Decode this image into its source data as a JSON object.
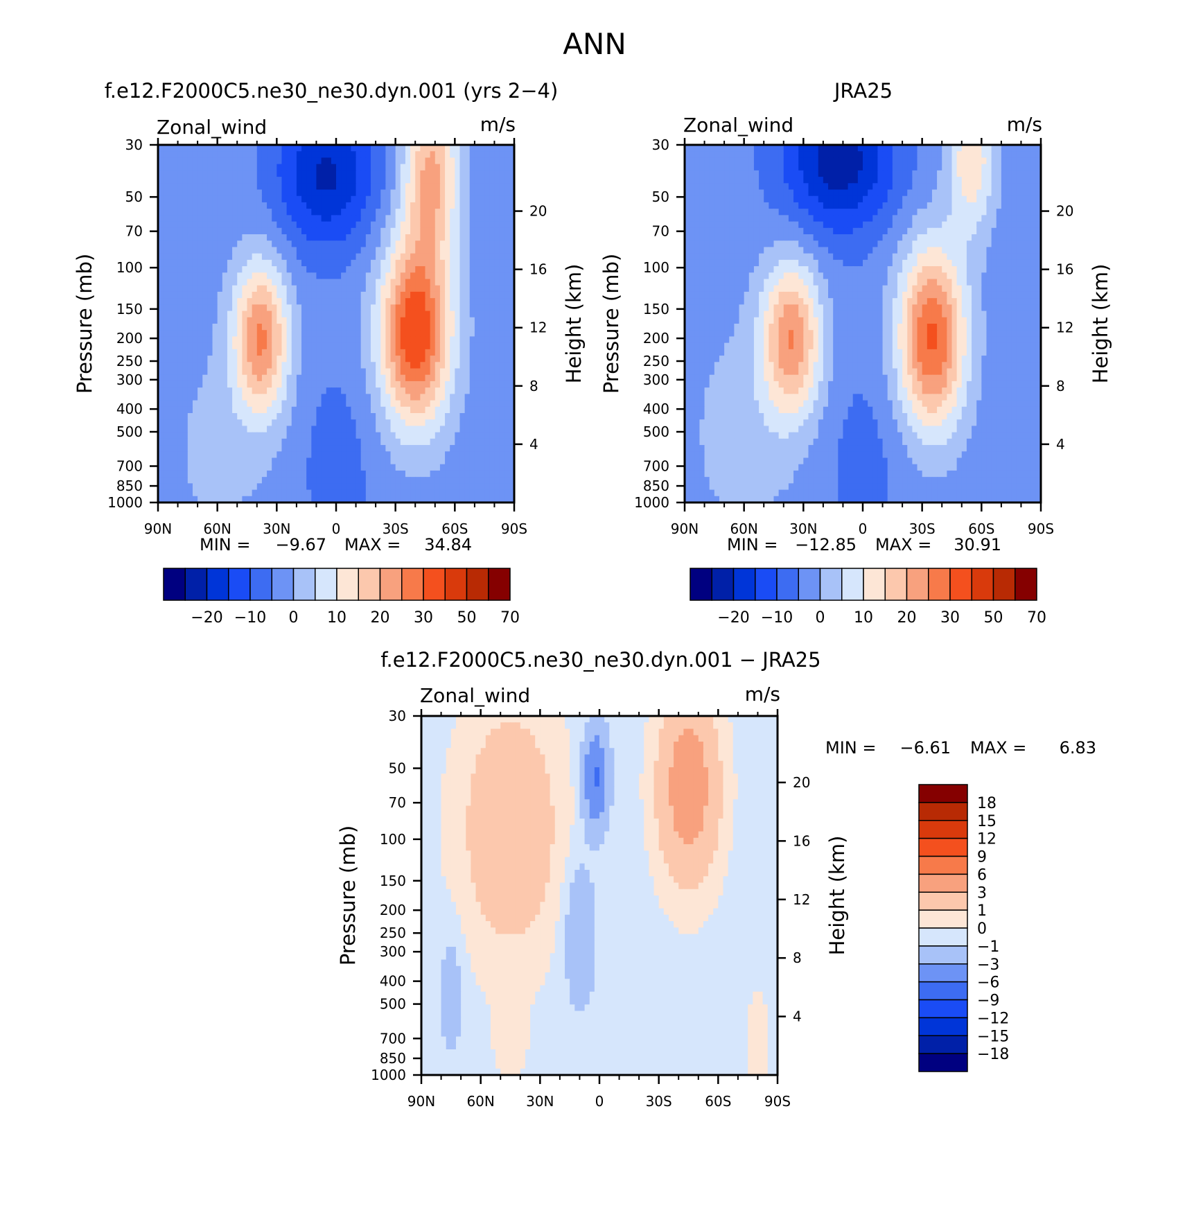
{
  "page": {
    "title": "ANN"
  },
  "chart_data": [
    {
      "type": "contour",
      "title": "f.e12.F2000C5.ne30_ne30.dyn.001 (yrs 2−4)",
      "left_label": "Zonal_wind",
      "right_label": "m/s",
      "xlabel": "",
      "ylabel": "Pressure (mb)",
      "ylabel_right": "Height (km)",
      "x_ticks": [
        "90N",
        "60N",
        "30N",
        "0",
        "30S",
        "60S",
        "90S"
      ],
      "x_values": [
        90,
        60,
        30,
        0,
        -30,
        -60,
        -90
      ],
      "y_ticks": [
        "30",
        "50",
        "70",
        "100",
        "150",
        "200",
        "250",
        "300",
        "400",
        "500",
        "700",
        "850",
        "1000"
      ],
      "y_values": [
        30,
        50,
        70,
        100,
        150,
        200,
        250,
        300,
        400,
        500,
        700,
        850,
        1000
      ],
      "height_ticks": [
        "20",
        "16",
        "12",
        "8",
        "4"
      ],
      "height_values": [
        20,
        16,
        12,
        8,
        4
      ],
      "min_label": "MIN =",
      "min_value": "−9.67",
      "max_label": "MAX =",
      "max_value": "34.84",
      "colorbar": {
        "orientation": "horizontal",
        "levels": [
          -25,
          -20,
          -15,
          -10,
          -5,
          0,
          5,
          10,
          15,
          20,
          25,
          30,
          40,
          50,
          60,
          70
        ],
        "labels": [
          "−20",
          "−10",
          "0",
          "10",
          "20",
          "30",
          "50",
          "70"
        ],
        "label_values": [
          -20,
          -10,
          0,
          10,
          20,
          30,
          50,
          70
        ]
      }
    },
    {
      "type": "contour",
      "title": "JRA25",
      "left_label": "Zonal_wind",
      "right_label": "m/s",
      "xlabel": "",
      "ylabel": "Pressure (mb)",
      "ylabel_right": "Height (km)",
      "x_ticks": [
        "90N",
        "60N",
        "30N",
        "0",
        "30S",
        "60S",
        "90S"
      ],
      "x_values": [
        90,
        60,
        30,
        0,
        -30,
        -60,
        -90
      ],
      "y_ticks": [
        "30",
        "50",
        "70",
        "100",
        "150",
        "200",
        "250",
        "300",
        "400",
        "500",
        "700",
        "850",
        "1000"
      ],
      "y_values": [
        30,
        50,
        70,
        100,
        150,
        200,
        250,
        300,
        400,
        500,
        700,
        850,
        1000
      ],
      "height_ticks": [
        "20",
        "16",
        "12",
        "8",
        "4"
      ],
      "height_values": [
        20,
        16,
        12,
        8,
        4
      ],
      "min_label": "MIN =",
      "min_value": "−12.85",
      "max_label": "MAX =",
      "max_value": "30.91",
      "colorbar": {
        "orientation": "horizontal",
        "levels": [
          -25,
          -20,
          -15,
          -10,
          -5,
          0,
          5,
          10,
          15,
          20,
          25,
          30,
          40,
          50,
          60,
          70
        ],
        "labels": [
          "−20",
          "−10",
          "0",
          "10",
          "20",
          "30",
          "50",
          "70"
        ],
        "label_values": [
          -20,
          -10,
          0,
          10,
          20,
          30,
          50,
          70
        ]
      }
    },
    {
      "type": "contour",
      "title": "f.e12.F2000C5.ne30_ne30.dyn.001 − JRA25",
      "left_label": "Zonal_wind",
      "right_label": "m/s",
      "xlabel": "",
      "ylabel": "Pressure (mb)",
      "ylabel_right": "Height (km)",
      "x_ticks": [
        "90N",
        "60N",
        "30N",
        "0",
        "30S",
        "60S",
        "90S"
      ],
      "x_values": [
        90,
        60,
        30,
        0,
        -30,
        -60,
        -90
      ],
      "y_ticks": [
        "30",
        "50",
        "70",
        "100",
        "150",
        "200",
        "250",
        "300",
        "400",
        "500",
        "700",
        "850",
        "1000"
      ],
      "y_values": [
        30,
        50,
        70,
        100,
        150,
        200,
        250,
        300,
        400,
        500,
        700,
        850,
        1000
      ],
      "height_ticks": [
        "20",
        "16",
        "12",
        "8",
        "4"
      ],
      "height_values": [
        20,
        16,
        12,
        8,
        4
      ],
      "min_label": "MIN =",
      "min_value": "−6.61",
      "max_label": "MAX =",
      "max_value": "6.83",
      "colorbar": {
        "orientation": "vertical",
        "levels": [
          -18,
          -15,
          -12,
          -9,
          -6,
          -3,
          -1,
          0,
          1,
          3,
          6,
          9,
          12,
          15,
          18
        ],
        "labels": [
          "18",
          "15",
          "12",
          "9",
          "6",
          "3",
          "1",
          "0",
          "−1",
          "−3",
          "−6",
          "−9",
          "−12",
          "−15",
          "−18"
        ],
        "label_values": [
          18,
          15,
          12,
          9,
          6,
          3,
          1,
          0,
          -1,
          -3,
          -6,
          -9,
          -12,
          -15,
          -18
        ]
      }
    }
  ],
  "colors": {
    "main_palette": [
      "#000080",
      "#0020a8",
      "#0035d8",
      "#1a4cf5",
      "#3d6cf2",
      "#6d93f5",
      "#a8c2f8",
      "#d6e6fc",
      "#fde6d6",
      "#fcc8ad",
      "#f8a17e",
      "#f77a4a",
      "#f4501e",
      "#d93a0c",
      "#b82a04",
      "#850000"
    ],
    "diff_palette": [
      "#000080",
      "#0020a8",
      "#0035d8",
      "#1a4cf5",
      "#3d6cf2",
      "#6d93f5",
      "#a8c2f8",
      "#d6e6fc",
      "#fde6d6",
      "#fcc8ad",
      "#f8a17e",
      "#f77a4a",
      "#f4501e",
      "#d93a0c",
      "#b82a04",
      "#850000"
    ]
  }
}
